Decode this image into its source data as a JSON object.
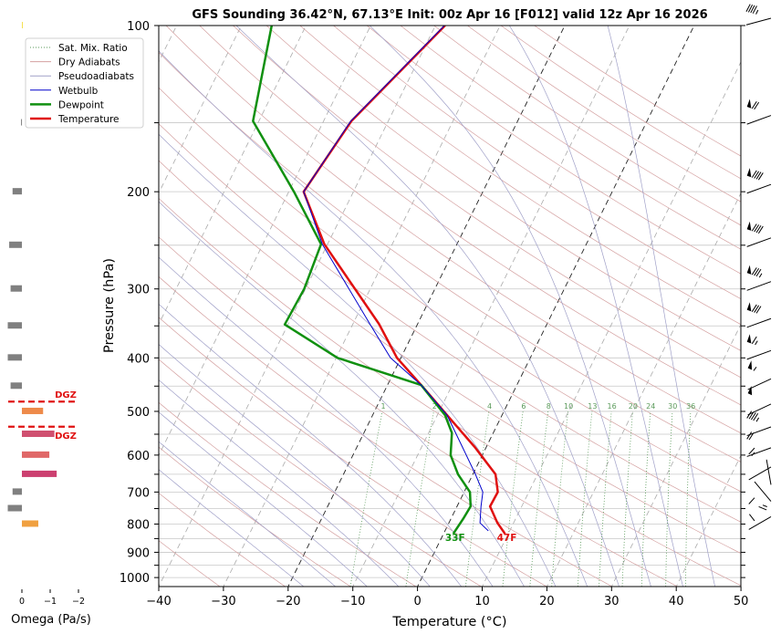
{
  "chart_data": {
    "type": "line",
    "subtype": "skew-t",
    "title": "GFS Sounding 36.42°N, 67.13°E Init: 00z Apr 16 [F012] valid 12z Apr 16 2026",
    "xlabel": "Temperature (°C)",
    "ylabel": "Pressure (hPa)",
    "xlim": [
      -40,
      50
    ],
    "ylim": [
      1050,
      100
    ],
    "xticks": [
      "−40",
      "−30",
      "−20",
      "−10",
      "0",
      "10",
      "20",
      "30",
      "40",
      "50"
    ],
    "xtick_values": [
      -40,
      -30,
      -20,
      -10,
      0,
      10,
      20,
      30,
      40,
      50
    ],
    "yticks": [
      "100",
      "200",
      "300",
      "400",
      "500",
      "600",
      "700",
      "800",
      "900",
      "1000"
    ],
    "ytick_values": [
      100,
      200,
      300,
      400,
      500,
      600,
      700,
      800,
      900,
      1000
    ],
    "grid_pressures": [
      100,
      150,
      200,
      250,
      300,
      350,
      400,
      450,
      500,
      550,
      600,
      650,
      700,
      750,
      800,
      850,
      900,
      950,
      1000
    ],
    "legend": {
      "placement": "top-left",
      "entries": [
        {
          "label": "Sat. Mix. Ratio",
          "color": "#5a9a5a",
          "style": "dotted"
        },
        {
          "label": "Dry Adiabats",
          "color": "#d4a0a0",
          "style": "solid"
        },
        {
          "label": "Pseudoadiabats",
          "color": "#a0a0c8",
          "style": "solid"
        },
        {
          "label": "Wetbulb",
          "color": "#0000cc",
          "style": "solid"
        },
        {
          "label": "Dewpoint",
          "color": "#109010",
          "style": "thick"
        },
        {
          "label": "Temperature",
          "color": "#e01010",
          "style": "thick"
        }
      ]
    },
    "series": [
      {
        "name": "Temperature",
        "color": "#e01010",
        "width": 2.5,
        "pressure": [
          100,
          149,
          200,
          249,
          347,
          400,
          448,
          508,
          580,
          650,
          700,
          743,
          796,
          833
        ],
        "values": [
          -38.5,
          -45.7,
          -47.7,
          -40.5,
          -26.0,
          -20.6,
          -14.8,
          -8.5,
          -1.8,
          3.5,
          5.2,
          5.1,
          7.5,
          9.5
        ]
      },
      {
        "name": "Dewpoint",
        "color": "#109010",
        "width": 2.5,
        "pressure": [
          100,
          149,
          200,
          249,
          300,
          348,
          400,
          448,
          508,
          547,
          600,
          650,
          700,
          743,
          781,
          833
        ],
        "values": [
          -65.3,
          -60.9,
          -49.2,
          -41.0,
          -40.2,
          -40.5,
          -29.8,
          -14.8,
          -8.8,
          -6.4,
          -4.9,
          -2.3,
          0.9,
          2.1,
          1.9,
          1.5
        ]
      },
      {
        "name": "Wetbulb",
        "color": "#0000cc",
        "width": 1,
        "pressure": [
          100,
          149,
          200,
          249,
          347,
          400,
          448,
          508,
          580,
          650,
          700,
          743,
          796,
          823
        ],
        "values": [
          -38.6,
          -45.8,
          -47.7,
          -40.8,
          -27.4,
          -21.6,
          -14.8,
          -8.5,
          -3.7,
          0.4,
          2.9,
          3.7,
          4.8,
          6.7
        ]
      }
    ],
    "surface_labels": [
      {
        "text": "33F",
        "color": "#109010",
        "temperature": 0.6
      },
      {
        "text": "47F",
        "color": "#e01010",
        "temperature": 8.3
      }
    ],
    "mixing_ratio_labels": [
      "1",
      "2",
      "4",
      "6",
      "8",
      "10",
      "13",
      "16",
      "20",
      "24",
      "30",
      "36"
    ],
    "mixing_ratio_values": [
      1,
      2,
      4,
      6,
      8,
      10,
      13,
      16,
      20,
      24,
      30,
      36
    ],
    "winds": [
      {
        "pressure": 100,
        "direction": 255,
        "speed_kt": 45
      },
      {
        "pressure": 150,
        "direction": 250,
        "speed_kt": 70
      },
      {
        "pressure": 200,
        "direction": 250,
        "speed_kt": 90
      },
      {
        "pressure": 250,
        "direction": 250,
        "speed_kt": 90
      },
      {
        "pressure": 300,
        "direction": 250,
        "speed_kt": 85
      },
      {
        "pressure": 350,
        "direction": 250,
        "speed_kt": 80
      },
      {
        "pressure": 400,
        "direction": 250,
        "speed_kt": 65
      },
      {
        "pressure": 450,
        "direction": 245,
        "speed_kt": 55
      },
      {
        "pressure": 500,
        "direction": 245,
        "speed_kt": 50
      },
      {
        "pressure": 550,
        "direction": 250,
        "speed_kt": 45
      },
      {
        "pressure": 600,
        "direction": 250,
        "speed_kt": 20
      },
      {
        "pressure": 650,
        "direction": 240,
        "speed_kt": 15
      },
      {
        "pressure": 700,
        "direction": 350,
        "speed_kt": 15
      },
      {
        "pressure": 750,
        "direction": 320,
        "speed_kt": 10
      },
      {
        "pressure": 800,
        "direction": 240,
        "speed_kt": 10
      }
    ],
    "omega": {
      "xlabel": "Omega (Pa/s)",
      "xticks": [
        "0",
        "−1",
        "−2"
      ],
      "xtick_values": [
        0,
        -1,
        -2
      ],
      "bars": [
        {
          "pressure": 100,
          "value": 0.0,
          "color": "#f5e050"
        },
        {
          "pressure": 150,
          "value": 0.03,
          "color": "#808080"
        },
        {
          "pressure": 200,
          "value": 0.33,
          "color": "#808080"
        },
        {
          "pressure": 250,
          "value": 0.45,
          "color": "#808080"
        },
        {
          "pressure": 300,
          "value": 0.4,
          "color": "#808080"
        },
        {
          "pressure": 350,
          "value": 0.5,
          "color": "#808080"
        },
        {
          "pressure": 400,
          "value": 0.5,
          "color": "#808080"
        },
        {
          "pressure": 450,
          "value": 0.4,
          "color": "#808080"
        },
        {
          "pressure": 500,
          "value": -0.75,
          "color": "#ee8a4a"
        },
        {
          "pressure": 550,
          "value": -1.15,
          "color": "#d05070"
        },
        {
          "pressure": 600,
          "value": -0.97,
          "color": "#e06868"
        },
        {
          "pressure": 650,
          "value": -1.23,
          "color": "#cc4070"
        },
        {
          "pressure": 700,
          "value": 0.33,
          "color": "#808080"
        },
        {
          "pressure": 750,
          "value": 0.5,
          "color": "#808080"
        },
        {
          "pressure": 800,
          "value": -0.58,
          "color": "#f0a040"
        }
      ],
      "dgz": {
        "label": "DGZ",
        "top_pressure": 480,
        "bottom_pressure": 533,
        "color": "#e01010"
      }
    }
  }
}
